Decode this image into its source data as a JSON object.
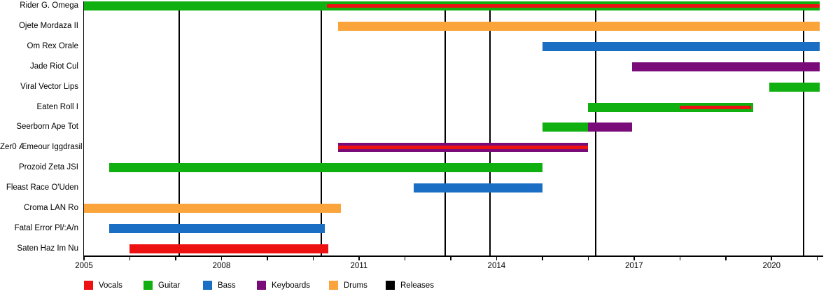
{
  "chart_data": {
    "type": "gantt-timeline",
    "description": "Band member timeline: rows are members, colored bars show tenure per instrument, black vertical lines mark releases",
    "x_axis": {
      "min": 2005,
      "max": 2021.05,
      "minor_tick_every": 1,
      "labeled_ticks": [
        {
          "year": 2005,
          "text": "2005"
        },
        {
          "year": 2008,
          "text": "2008"
        },
        {
          "year": 2011,
          "text": "2011"
        },
        {
          "year": 2014,
          "text": "2014"
        },
        {
          "year": 2017,
          "text": "2017"
        },
        {
          "year": 2020,
          "text": "2020"
        }
      ]
    },
    "rows": [
      {
        "label": "Rider G. Omega",
        "bars": [
          {
            "role": "Guitar",
            "start": 2005.0,
            "end": 2021.05
          },
          {
            "role": "Vocals",
            "start": 2010.3,
            "end": 2021.05,
            "stripe": true
          }
        ]
      },
      {
        "label": "Ojete Mordaza II",
        "bars": [
          {
            "role": "Drums",
            "start": 2010.55,
            "end": 2021.05
          }
        ]
      },
      {
        "label": "Om Rex Orale",
        "bars": [
          {
            "role": "Bass",
            "start": 2015.0,
            "end": 2021.05
          }
        ]
      },
      {
        "label": "Jade Riot Cul",
        "bars": [
          {
            "role": "Keyboards",
            "start": 2016.95,
            "end": 2021.05
          }
        ]
      },
      {
        "label": "Viral Vector Lips",
        "bars": [
          {
            "role": "Guitar",
            "start": 2019.95,
            "end": 2021.05
          }
        ]
      },
      {
        "label": "Eaten Roll I",
        "bars": [
          {
            "role": "Guitar",
            "start": 2016.0,
            "end": 2019.6
          },
          {
            "role": "Vocals",
            "start": 2018.0,
            "end": 2019.55,
            "stripe": true
          }
        ]
      },
      {
        "label": "Seerborn Ape Tot",
        "bars": [
          {
            "role": "Guitar",
            "start": 2015.0,
            "end": 2016.0
          },
          {
            "role": "Keyboards",
            "start": 2016.0,
            "end": 2016.95
          }
        ]
      },
      {
        "label": "Zer0 Æmeour Iggdrasil",
        "bars": [
          {
            "role": "Keyboards",
            "start": 2010.55,
            "end": 2016.0
          },
          {
            "role": "Vocals",
            "start": 2010.55,
            "end": 2016.0,
            "stripe": true
          }
        ]
      },
      {
        "label": "Prozoid Zeta JSI",
        "bars": [
          {
            "role": "Guitar",
            "start": 2005.55,
            "end": 2015.0
          }
        ]
      },
      {
        "label": "Fleast Race O'Uden",
        "bars": [
          {
            "role": "Bass",
            "start": 2012.2,
            "end": 2015.0
          }
        ]
      },
      {
        "label": "Croma LAN Ro",
        "bars": [
          {
            "role": "Drums",
            "start": 2005.0,
            "end": 2010.6
          }
        ]
      },
      {
        "label": "Fatal Error Pl/:A/n",
        "bars": [
          {
            "role": "Bass",
            "start": 2005.55,
            "end": 2010.25
          }
        ]
      },
      {
        "label": "Saten Haz Im Nu",
        "bars": [
          {
            "role": "Vocals",
            "start": 2006.0,
            "end": 2010.33
          }
        ]
      }
    ],
    "releases": [
      2007.07,
      2010.17,
      2012.88,
      2013.86,
      2016.17,
      2020.7
    ],
    "legend": [
      {
        "label": "Vocals",
        "color": "#EE1111"
      },
      {
        "label": "Guitar",
        "color": "#0FB00F"
      },
      {
        "label": "Bass",
        "color": "#1A6FC4"
      },
      {
        "label": "Keyboards",
        "color": "#7A0C7A"
      },
      {
        "label": "Drums",
        "color": "#FAA43B"
      },
      {
        "label": "Releases",
        "color": "#000000"
      }
    ]
  }
}
